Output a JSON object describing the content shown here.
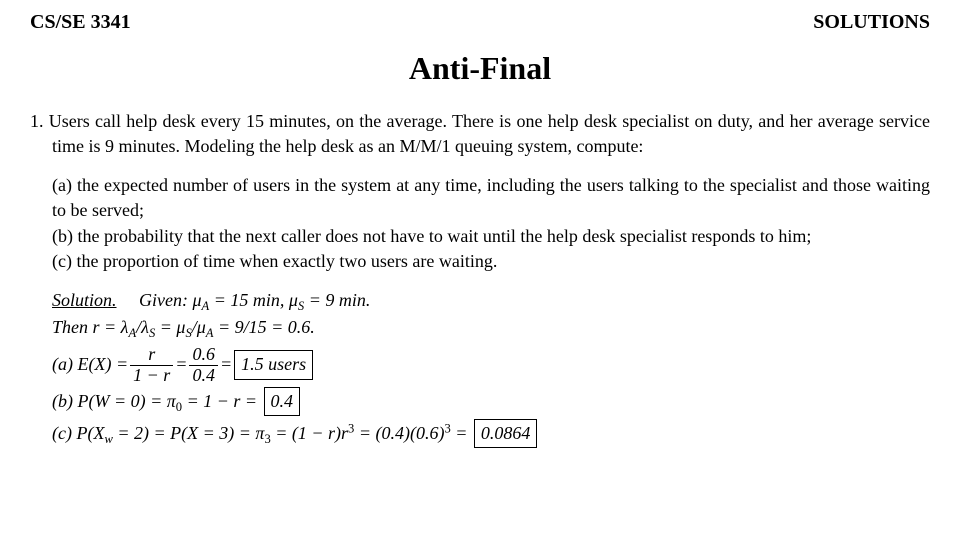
{
  "header": {
    "left": "CS/SE 3341",
    "right": "SOLUTIONS"
  },
  "title": "Anti-Final",
  "problem": {
    "number": "1.",
    "intro": "Users call help desk every 15 minutes, on the average. There is one help desk specialist on duty, and her average service time is 9 minutes. Modeling the help desk as an M/M/1 queuing system, compute:",
    "parts": {
      "a": "(a) the expected number of users in the system at any time, including the users talking to the specialist and those waiting to be served;",
      "b": "(b) the probability that the next caller does not have to wait until the help desk specialist responds to him;",
      "c": "(c) the proportion of time when exactly two users are waiting."
    }
  },
  "solution": {
    "label": "Solution.",
    "given_prefix": "Given: μ",
    "given_mid1": " = 15 min, μ",
    "given_mid2": " = 9 min.",
    "then_prefix": "Then r = λ",
    "then_mid1": "/λ",
    "then_mid2": " = μ",
    "then_mid3": "/μ",
    "then_mid4": " = 9/15 = 0.6.",
    "sub_A": "A",
    "sub_S": "S",
    "ans_a_label": "(a) E(X) = ",
    "frac1_num": "r",
    "frac1_den": "1 − r",
    "frac2_num": "0.6",
    "frac2_den": "0.4",
    "ans_a_box": "1.5 users",
    "ans_b_label": "(b) P(W = 0) = π",
    "ans_b_sub": "0",
    "ans_b_rest": " = 1 − r = ",
    "ans_b_box": "0.4",
    "ans_c_label": "(c) P(X",
    "ans_c_sub": "w",
    "ans_c_mid": " = 2) = P(X = 3) = π",
    "ans_c_sub2": "3",
    "ans_c_rest": " = (1 − r)r",
    "ans_c_exp": "3",
    "ans_c_rest2": " = (0.4)(0.6)",
    "ans_c_rest3": " = ",
    "ans_c_box": "0.0864",
    "eq": " = "
  }
}
